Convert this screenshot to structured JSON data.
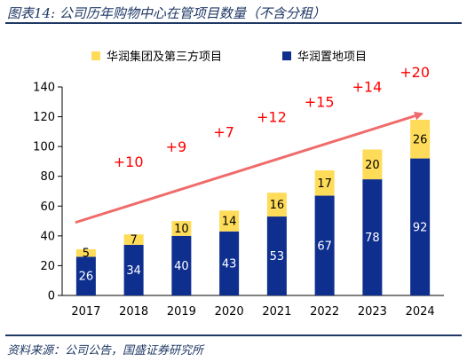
{
  "caption": "图表14: 公司历年购物中心在管项目数量（不含分租）",
  "source": "资料来源：公司公告，国盛证券研究所",
  "chart_data": {
    "type": "bar",
    "stacked": true,
    "categories": [
      "2017",
      "2018",
      "2019",
      "2020",
      "2021",
      "2022",
      "2023",
      "2024"
    ],
    "series": [
      {
        "name": "华润置地项目",
        "color": "#0f2f8f",
        "label_color": "#ffffff",
        "values": [
          26,
          34,
          40,
          43,
          53,
          67,
          78,
          92
        ]
      },
      {
        "name": "华润集团及第三方项目",
        "color": "#fedc5a",
        "label_color": "#000000",
        "values": [
          5,
          7,
          10,
          14,
          16,
          17,
          20,
          26
        ]
      }
    ],
    "legend_order": [
      "华润集团及第三方项目",
      "华润置地项目"
    ],
    "legend_position": "top",
    "increments": [
      "+10",
      "+9",
      "+7",
      "+12",
      "+15",
      "+14",
      "+20"
    ],
    "trend_arrow_color": "#f06b6b",
    "increment_color": "#ff0000",
    "ylim": [
      0,
      140
    ],
    "yticks": [
      0,
      20,
      40,
      60,
      80,
      100,
      120,
      140
    ],
    "grid": false
  }
}
